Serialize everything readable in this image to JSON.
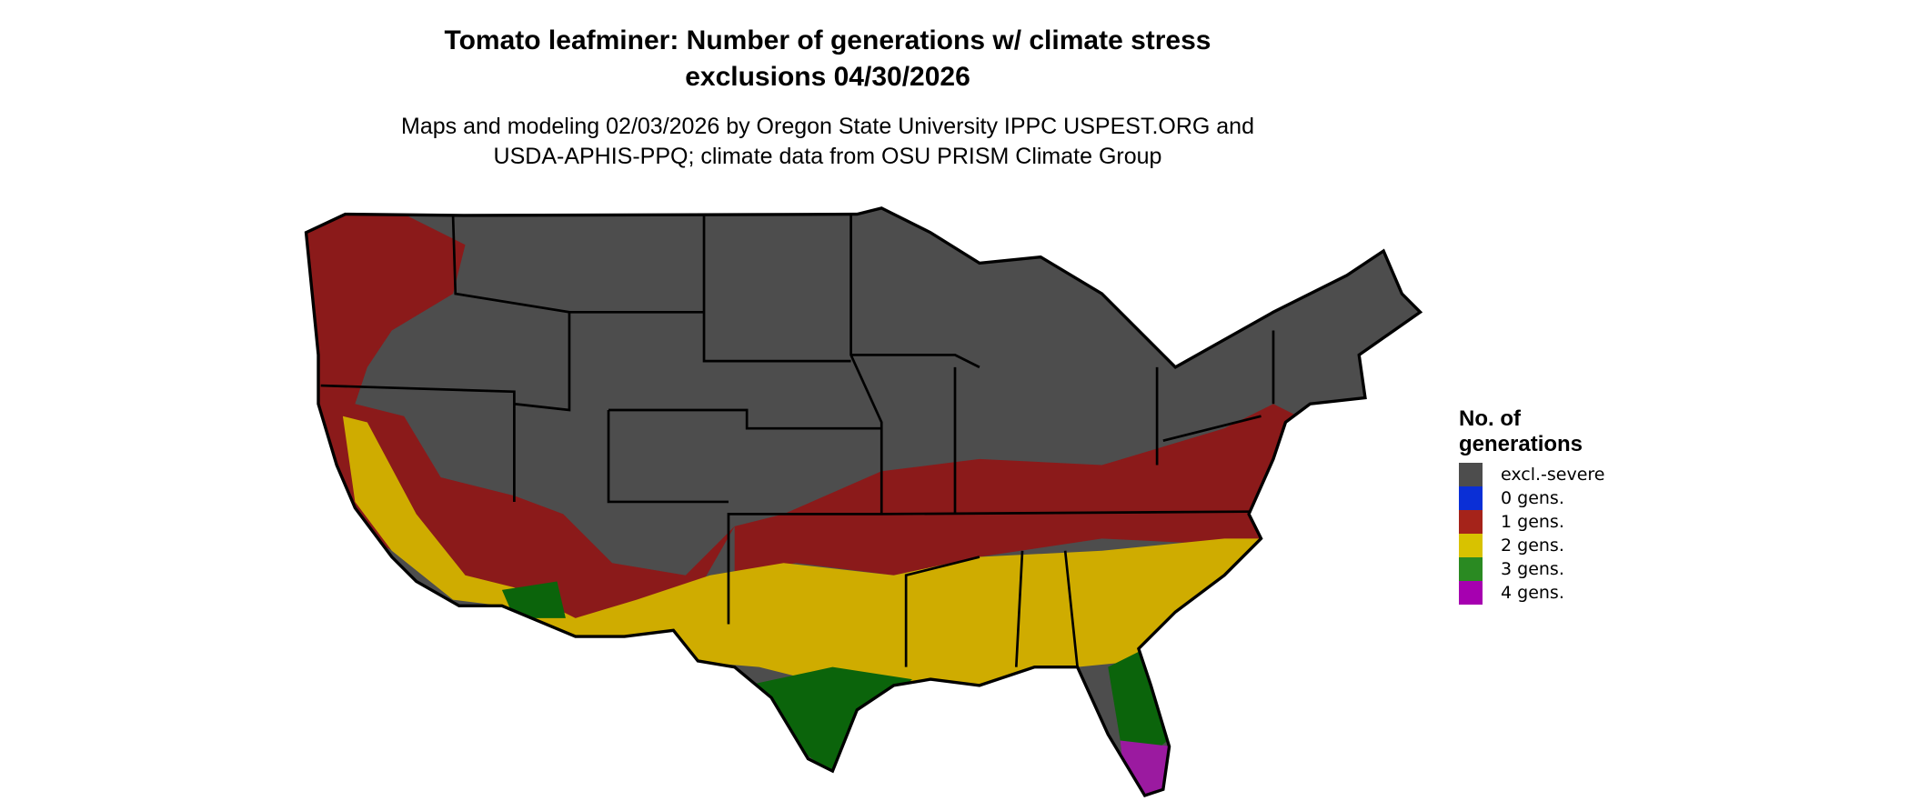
{
  "title_line1": "Tomato leafminer: Number of generations w/ climate stress",
  "title_line2": "exclusions 04/30/2026",
  "subtitle_line1": "Maps and modeling 02/03/2026 by Oregon State University IPPC USPEST.ORG and",
  "subtitle_line2": "USDA-APHIS-PPQ; climate data from OSU PRISM Climate Group",
  "legend": {
    "title_line1": "No. of",
    "title_line2": "generations",
    "items": [
      {
        "label": "excl.-severe",
        "color": "#4d4d4d"
      },
      {
        "label": "0 gens.",
        "color": "#0a2fd6"
      },
      {
        "label": "1 gens.",
        "color": "#a5231a"
      },
      {
        "label": "2 gens.",
        "color": "#d8c200"
      },
      {
        "label": "3 gens.",
        "color": "#2a8a22"
      },
      {
        "label": "4 gens.",
        "color": "#a600b0"
      }
    ]
  },
  "map_colors": {
    "excl_severe": "#4d4d4d",
    "gen1": "#8b1a1a",
    "gen2": "#cfac00",
    "gen3": "#0b640b",
    "gen4": "#9b1aa0"
  }
}
